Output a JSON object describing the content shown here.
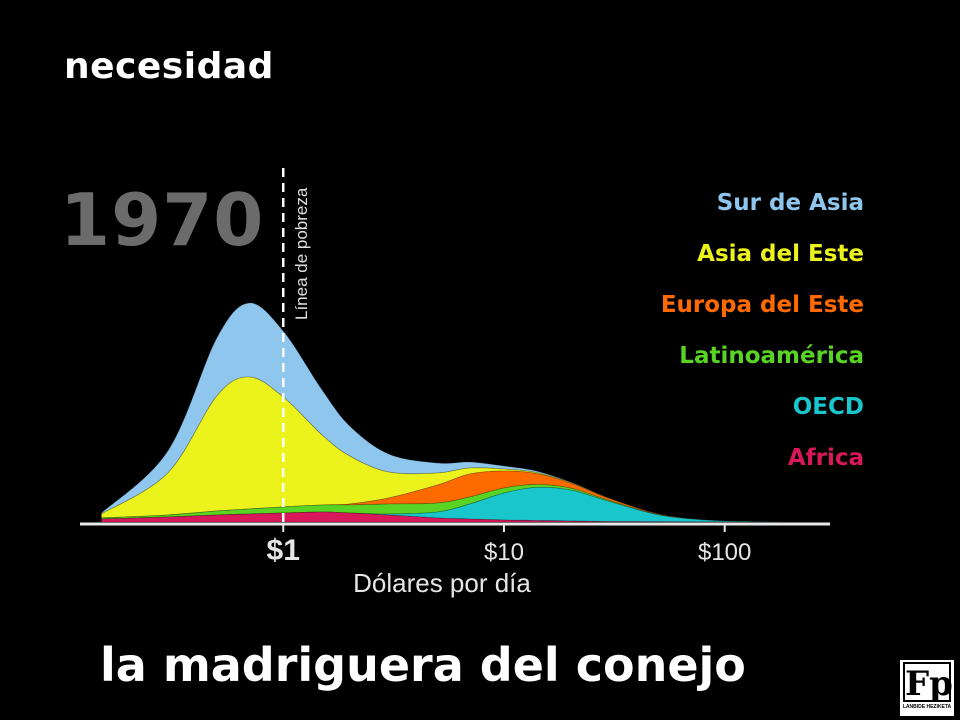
{
  "slide": {
    "heading": "necesidad",
    "footer": "la madriguera del conejo",
    "logo_mark": "Fp",
    "logo_sub": "LANBIDE HEZIKETA"
  },
  "chart_data": {
    "type": "area",
    "year_label": "1970",
    "xlabel": "Dólares por día",
    "x_scale": "log",
    "xlim": [
      0.12,
      300
    ],
    "x_ticks": [
      {
        "value": 1,
        "label": "$1",
        "emphasis": true
      },
      {
        "value": 10,
        "label": "$10",
        "emphasis": false
      },
      {
        "value": 100,
        "label": "$100",
        "emphasis": false
      }
    ],
    "poverty_line": {
      "value": 1,
      "label": "Línea de pobreza"
    },
    "stacking": "stacked",
    "legend_placement": "right",
    "x": [
      0.15,
      0.3,
      0.5,
      0.7,
      1,
      1.5,
      2,
      3,
      5,
      7,
      10,
      14,
      20,
      30,
      50,
      80,
      130,
      200
    ],
    "series": [
      {
        "name": "Africa",
        "color": "#d8185a",
        "values": [
          3,
          5,
          7,
          8,
          9,
          10,
          9,
          7,
          4,
          3,
          2,
          1.5,
          1,
          0.5,
          0.2,
          0.1,
          0.05,
          0
        ]
      },
      {
        "name": "OECD",
        "color": "#19c6cc",
        "values": [
          0,
          0,
          0,
          0,
          0,
          0,
          0,
          1,
          6,
          15,
          27,
          33,
          31,
          20,
          7,
          2,
          0.4,
          0
        ]
      },
      {
        "name": "Latinoamérica",
        "color": "#59d425",
        "values": [
          1,
          2,
          4,
          5,
          6,
          7,
          8,
          10,
          9,
          7,
          5,
          3,
          2,
          1,
          0.4,
          0.1,
          0,
          0
        ]
      },
      {
        "name": "Europa del Este",
        "color": "#ff6a00",
        "values": [
          0,
          0,
          0,
          0,
          0,
          0,
          1,
          6,
          18,
          23,
          17,
          11,
          5,
          2,
          0.5,
          0.1,
          0,
          0
        ]
      },
      {
        "name": "Asia del Este",
        "color": "#ecf21c",
        "values": [
          4,
          42,
          115,
          132,
          110,
          70,
          48,
          26,
          12,
          6,
          2,
          1,
          0.5,
          0.2,
          0,
          0,
          0,
          0
        ]
      },
      {
        "name": "Sur de Asia",
        "color": "#8ec6ee",
        "values": [
          1,
          22,
          58,
          74,
          66,
          45,
          30,
          18,
          10,
          6,
          3,
          1.5,
          0.5,
          0.2,
          0,
          0,
          0,
          0
        ]
      }
    ]
  }
}
